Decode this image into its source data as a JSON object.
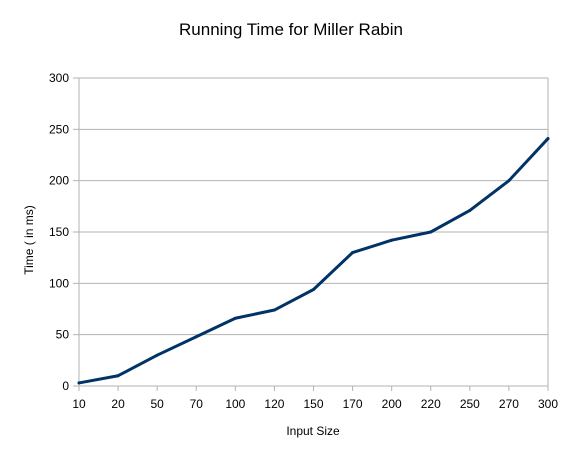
{
  "chart_data": {
    "type": "line",
    "title": "Running Time for Miller Rabin",
    "xlabel": "Input Size",
    "ylabel": "Time ( in ms)",
    "categories": [
      "10",
      "20",
      "50",
      "70",
      "100",
      "120",
      "150",
      "170",
      "200",
      "220",
      "250",
      "270",
      "300"
    ],
    "series": [
      {
        "values": [
          3,
          10,
          30,
          48,
          66,
          74,
          94,
          130,
          142,
          150,
          171,
          200,
          241
        ]
      }
    ],
    "ylim": [
      0,
      300
    ],
    "yticks": [
      "0",
      "50",
      "100",
      "150",
      "200",
      "250",
      "300"
    ],
    "grid": true,
    "legend": "none",
    "colors": {
      "line": "#003366",
      "grid": "#b3b3b3"
    }
  }
}
